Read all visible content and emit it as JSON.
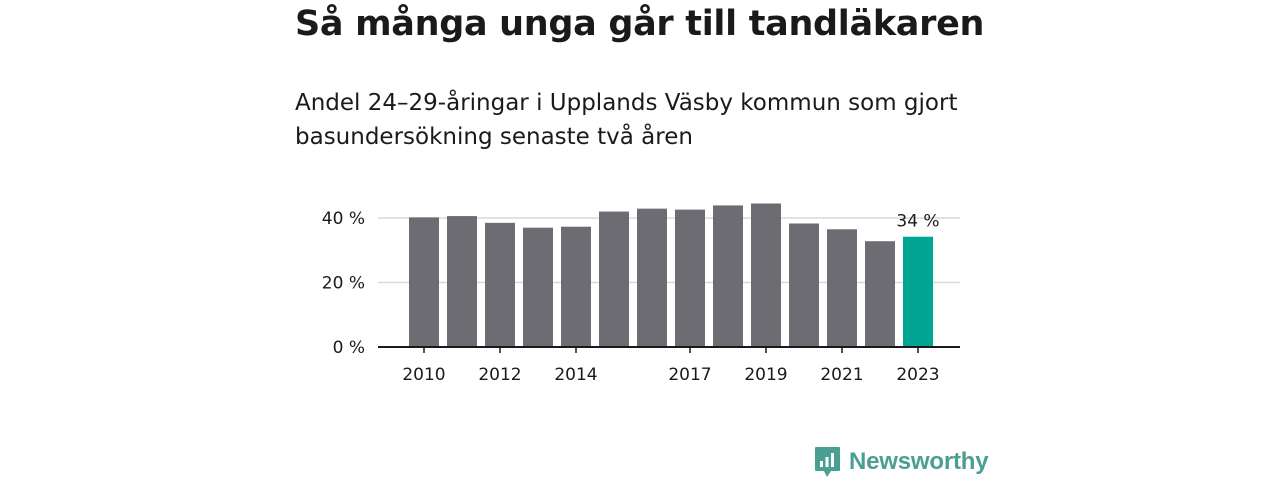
{
  "title": "Så många unga går till tandläkaren",
  "subtitle": "Andel 24–29-åringar i Upplands Väsby kommun som gjort basundersökning senaste två åren",
  "colors": {
    "bar": "#6d6c73",
    "highlight": "#00a693",
    "grid": "#d9d9d9",
    "axis": "#1a1a1a",
    "brand": "#4a9f92"
  },
  "brand": {
    "name": "Newsworthy",
    "icon": "chart-logo-icon"
  },
  "chart_data": {
    "type": "bar",
    "categories": [
      "2010",
      "2011",
      "2012",
      "2013",
      "2014",
      "2015",
      "2016",
      "2017",
      "2018",
      "2019",
      "2020",
      "2021",
      "2022",
      "2023"
    ],
    "x_tick_labels": [
      "2010",
      "",
      "2012",
      "",
      "2014",
      "",
      "",
      "2017",
      "",
      "2019",
      "",
      "2021",
      "",
      "2023"
    ],
    "values": [
      40.2,
      40.6,
      38.5,
      37.0,
      37.3,
      42.0,
      42.9,
      42.6,
      43.9,
      44.5,
      38.3,
      36.5,
      32.8,
      34.2
    ],
    "highlight_index": 13,
    "annotation": "34 %",
    "y_ticks": [
      0,
      20,
      40
    ],
    "y_tick_labels": [
      "0 %",
      "20 %",
      "40 %"
    ],
    "ylim": [
      0,
      45
    ],
    "grid": true
  }
}
